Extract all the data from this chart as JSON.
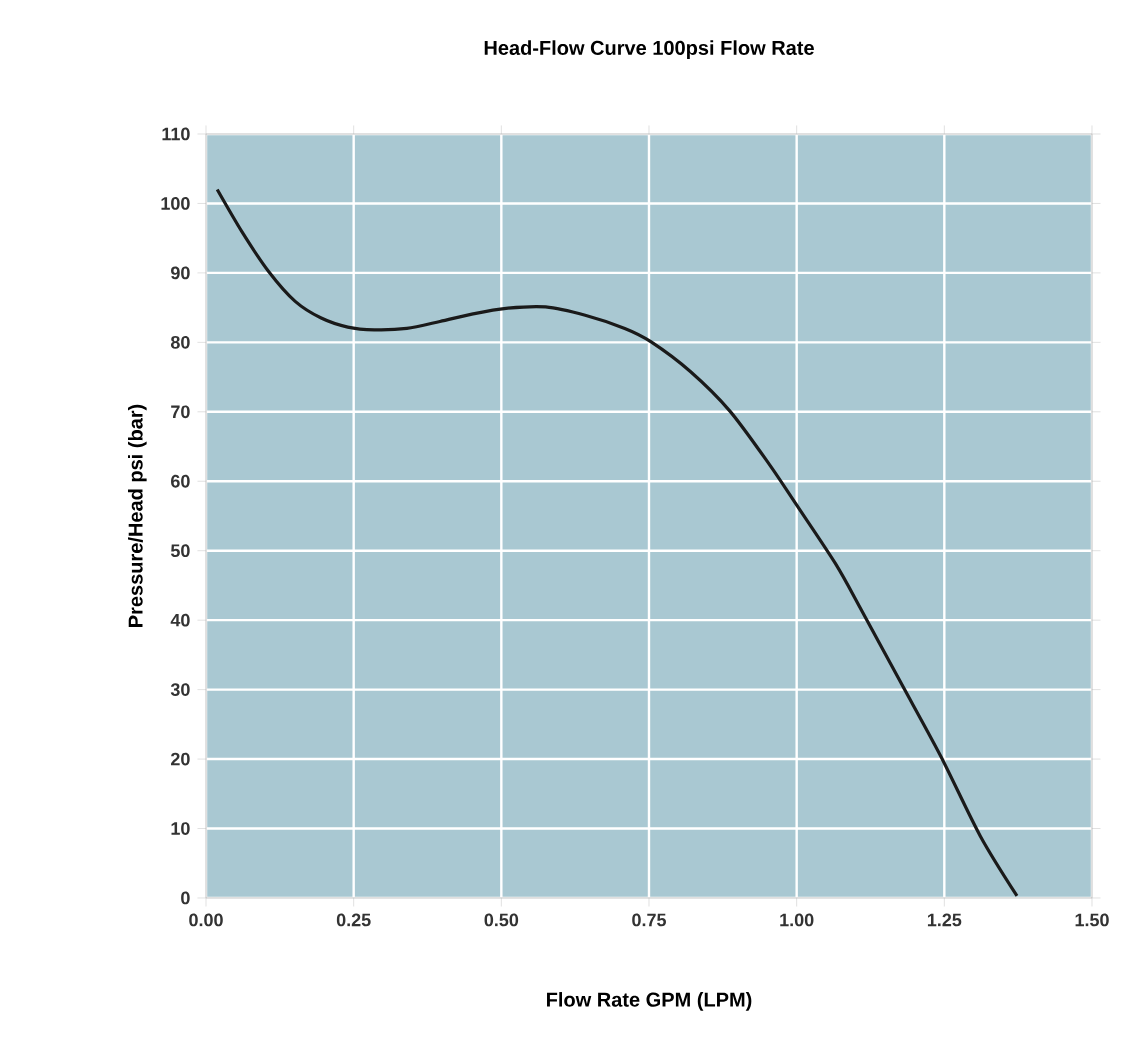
{
  "chart_data": {
    "type": "line",
    "title": "Head-Flow Curve 100psi Flow Rate",
    "xlabel": "Flow Rate GPM (LPM)",
    "ylabel": "Pressure/Head psi (bar)",
    "series": [
      {
        "color": "#1a1a1a",
        "x": [
          0.019,
          0.061,
          0.106,
          0.151,
          0.195,
          0.24,
          0.285,
          0.34,
          0.396,
          0.452,
          0.508,
          0.575,
          0.642,
          0.709,
          0.753,
          0.82,
          0.887,
          0.954,
          0.999,
          1.066,
          1.11,
          1.177,
          1.244,
          1.311,
          1.373
        ],
        "values": [
          102,
          95.9,
          90.2,
          85.9,
          83.5,
          82.2,
          81.8,
          82.0,
          83.0,
          84.1,
          84.9,
          85.1,
          83.9,
          82.0,
          80.1,
          75.8,
          70.1,
          62.4,
          56.7,
          48.1,
          41.4,
          30.9,
          20.4,
          8.9,
          0.3
        ]
      }
    ],
    "xlim": [
      0,
      1.5
    ],
    "ylim": [
      0,
      110
    ],
    "xticks": [
      {
        "value": 0,
        "label": "0.00"
      },
      0.25,
      {
        "value": 0.5,
        "label": "0.50"
      },
      0.75,
      {
        "value": 1,
        "label": "1.00"
      },
      1.25,
      {
        "value": 1.5,
        "label": "1.50"
      }
    ],
    "yticks": [
      0,
      10,
      20,
      30,
      40,
      50,
      60,
      70,
      80,
      90,
      100,
      110
    ],
    "grid": true,
    "marker": "none",
    "line_style": "solid"
  }
}
